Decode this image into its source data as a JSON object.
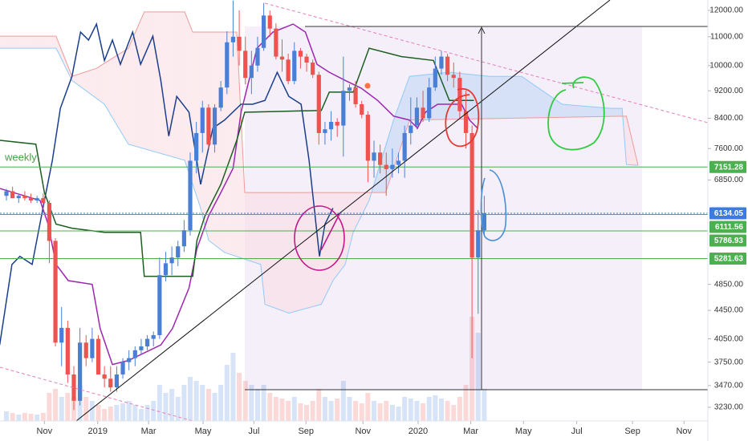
{
  "chart_data": {
    "type": "candlestick",
    "annotation": "weekly",
    "log_scale": true,
    "up_color": "#4a7fd6",
    "down_color": "#ef5350",
    "xlim": [
      -1.05,
      114.5
    ],
    "ylim": [
      3087,
      12421
    ],
    "xticks": [
      {
        "value": 6.2,
        "label": "Nov"
      },
      {
        "value": 14.9,
        "label": "2019"
      },
      {
        "value": 23.2,
        "label": "Mar"
      },
      {
        "value": 32.1,
        "label": "May"
      },
      {
        "value": 40.4,
        "label": "Jul"
      },
      {
        "value": 48.9,
        "label": "Sep"
      },
      {
        "value": 58.2,
        "label": "Nov"
      },
      {
        "value": 67.2,
        "label": "2020"
      },
      {
        "value": 75.8,
        "label": "Mar"
      },
      {
        "value": 84.4,
        "label": "May"
      },
      {
        "value": 93.1,
        "label": "Jul"
      },
      {
        "value": 102.2,
        "label": "Sep"
      },
      {
        "value": 110.6,
        "label": "Nov"
      }
    ],
    "yticks": [
      {
        "value": 12000,
        "label": "12000.00"
      },
      {
        "value": 11000,
        "label": "11000.00"
      },
      {
        "value": 10000,
        "label": "10000.00"
      },
      {
        "value": 9200,
        "label": "9200.00"
      },
      {
        "value": 8400,
        "label": "8400.00"
      },
      {
        "value": 7600,
        "label": "7600.00"
      },
      {
        "value": 6850,
        "label": "6850.00"
      },
      {
        "value": 4850,
        "label": "4850.00"
      },
      {
        "value": 4450,
        "label": "4450.00"
      },
      {
        "value": 4050,
        "label": "4050.00"
      },
      {
        "value": 3750,
        "label": "3750.00"
      },
      {
        "value": 3470,
        "label": "3470.00"
      },
      {
        "value": 3230,
        "label": "3230.00"
      }
    ],
    "open": [
      6500,
      6600,
      6450,
      6500,
      6450,
      6400,
      6450,
      6350,
      5600,
      4000,
      4200,
      3600,
      3300,
      4000,
      3800,
      4050,
      3600,
      3550,
      3450,
      3600,
      3750,
      3800,
      3900,
      3950,
      4050,
      4100,
      5000,
      5200,
      5300,
      5500,
      5800,
      7300,
      8000,
      8700,
      7700,
      8700,
      9300,
      10800,
      11000,
      10500,
      9600,
      10000,
      10600,
      11800,
      11300,
      10300,
      10200,
      9500,
      10500,
      10300,
      10100,
      9700,
      8000,
      8100,
      8300,
      8200,
      9200,
      9300,
      8800,
      8500,
      7300,
      7500,
      7200,
      7100,
      7200,
      7300,
      8000,
      8200,
      8700,
      8400,
      9300,
      9900,
      10300,
      9700,
      9600,
      8600,
      8000,
      5300,
      5800
    ],
    "high": [
      6650,
      6700,
      6550,
      6600,
      6550,
      6500,
      6550,
      6400,
      5650,
      4500,
      4300,
      3700,
      4200,
      4100,
      4200,
      4100,
      3700,
      3700,
      3700,
      3800,
      3900,
      3950,
      4050,
      4100,
      4150,
      5300,
      5400,
      5500,
      5600,
      6000,
      7500,
      8300,
      8900,
      8800,
      8800,
      9500,
      11200,
      12400,
      12000,
      11000,
      10500,
      11000,
      12300,
      12000,
      11500,
      10900,
      10400,
      10800,
      10600,
      10400,
      10200,
      9800,
      8300,
      8600,
      8400,
      10300,
      9400,
      9500,
      8900,
      8600,
      7800,
      7700,
      7500,
      7600,
      7500,
      8200,
      9000,
      9000,
      9200,
      9600,
      10300,
      10500,
      10400,
      10100,
      9800,
      9200,
      8200,
      6200,
      6500
    ],
    "low": [
      6400,
      6450,
      6350,
      6400,
      6350,
      6350,
      6300,
      5200,
      3950,
      3700,
      3500,
      3200,
      3250,
      3700,
      3750,
      3600,
      3450,
      3400,
      3400,
      3550,
      3650,
      3700,
      3850,
      3900,
      3950,
      4050,
      4900,
      5000,
      5150,
      5400,
      5700,
      7000,
      7500,
      7600,
      7500,
      8600,
      9100,
      10300,
      10000,
      9400,
      9100,
      9800,
      10500,
      11000,
      10200,
      9800,
      9400,
      9400,
      9900,
      9800,
      9600,
      7700,
      7700,
      7800,
      7900,
      7400,
      8900,
      8700,
      8400,
      6800,
      6900,
      7000,
      6500,
      6900,
      7000,
      6900,
      7700,
      8100,
      8300,
      8300,
      9200,
      9700,
      9500,
      9300,
      8400,
      7600,
      3800,
      4400,
      5700
    ],
    "close": [
      6600,
      6450,
      6500,
      6450,
      6400,
      6450,
      6350,
      5600,
      4000,
      4200,
      3600,
      3300,
      4000,
      3800,
      4050,
      3600,
      3550,
      3450,
      3600,
      3750,
      3800,
      3900,
      3950,
      4050,
      4100,
      5000,
      5200,
      5300,
      5500,
      5800,
      7300,
      8000,
      8700,
      7700,
      8700,
      9300,
      10800,
      11000,
      10500,
      9600,
      10000,
      10600,
      11800,
      11300,
      10300,
      10200,
      9500,
      10500,
      10300,
      10100,
      9700,
      8000,
      8100,
      8300,
      8200,
      9200,
      9300,
      8800,
      8500,
      7300,
      7500,
      7200,
      7100,
      7200,
      7300,
      8000,
      8200,
      8700,
      8400,
      9300,
      9900,
      10300,
      9700,
      9600,
      8600,
      8000,
      5300,
      5800,
      6134.05
    ],
    "volume": [
      12,
      10,
      8,
      10,
      9,
      8,
      10,
      35,
      40,
      30,
      35,
      30,
      45,
      30,
      25,
      20,
      15,
      18,
      20,
      22,
      25,
      20,
      15,
      20,
      25,
      45,
      35,
      40,
      30,
      45,
      55,
      50,
      45,
      40,
      35,
      45,
      70,
      85,
      60,
      50,
      45,
      40,
      45,
      35,
      30,
      28,
      25,
      30,
      22,
      20,
      25,
      40,
      30,
      25,
      28,
      50,
      30,
      25,
      22,
      35,
      25,
      22,
      25,
      20,
      18,
      30,
      28,
      25,
      22,
      30,
      32,
      28,
      25,
      20,
      30,
      45,
      130,
      110,
      40
    ],
    "lines": [
      {
        "color": "#1a3e8c",
        "x": [
          -1.1,
          0.9,
          2.2,
          4.2,
          6.2,
          7.5,
          8.8,
          10.7,
          12.1,
          13.4,
          14.7,
          16.0,
          17.3,
          18.6,
          20.6,
          21.9,
          23.9,
          25.2,
          26.5,
          27.8,
          29.8,
          31.7,
          33.7,
          35.6,
          38.3,
          40.2,
          42.2,
          44.2,
          46.1,
          48.1,
          49.4,
          51.1,
          52.0,
          53.3
        ],
        "values": [
          3970,
          5180,
          5320,
          5180,
          6400,
          7310,
          8680,
          9650,
          11170,
          10880,
          11470,
          10170,
          10880,
          10040,
          11170,
          10040,
          11020,
          9520,
          7920,
          9030,
          8570,
          6750,
          8130,
          8350,
          8800,
          8800,
          8910,
          9780,
          9030,
          8800,
          7310,
          5320,
          5920,
          6240
        ]
      },
      {
        "color": "#9c27b0",
        "x": [
          -1.1,
          5.5,
          6.8,
          8.1,
          10.1,
          14.0,
          15.3,
          17.3,
          19.9,
          25.2,
          27.1,
          29.8,
          31.1,
          33.0,
          35.0,
          37.0,
          38.3,
          40.9,
          43.5,
          46.8,
          48.8,
          50.7,
          52.7,
          55.3,
          57.9,
          60.6,
          63.2,
          65.8,
          67.1,
          68.4,
          70.4,
          72.3,
          74.3,
          75.6,
          76.9
        ],
        "values": [
          6660,
          6400,
          5920,
          5180,
          4910,
          4850,
          4190,
          3720,
          3770,
          3970,
          4190,
          4790,
          5460,
          6080,
          6570,
          7120,
          8570,
          10590,
          11170,
          11470,
          11170,
          10040,
          9780,
          9520,
          9280,
          8910,
          8460,
          8350,
          8130,
          8570,
          8800,
          8800,
          8800,
          8350,
          8130
        ]
      },
      {
        "color": "#1b5e20",
        "x": [
          -1.1,
          4.8,
          6.2,
          8.1,
          10.7,
          16.0,
          21.9,
          22.5,
          30.4,
          31.1,
          32.4,
          35.0,
          37.6,
          38.9,
          51.4,
          52.7,
          56.6,
          59.2,
          64.5,
          69.7,
          72.3,
          76.3
        ],
        "values": [
          7810,
          7710,
          6570,
          5920,
          5840,
          5760,
          5760,
          4980,
          4980,
          5610,
          6080,
          6750,
          7810,
          8570,
          8620,
          9160,
          9160,
          10590,
          10300,
          10170,
          8910,
          8910
        ]
      }
    ],
    "cloud": {
      "span_a": {
        "color": "#90caf9",
        "x": [
          -1.1,
          8.1,
          8.8,
          10.7,
          16.0,
          19.9,
          29.1,
          31.7,
          33.0,
          35.6,
          41.5,
          42.2,
          46.1,
          51.4,
          53.3,
          55.3,
          56.6,
          59.2,
          63.2,
          65.8,
          72.3,
          78.9,
          84.1,
          90.7,
          98.6,
          100.5,
          101.2,
          103.1
        ],
        "values": [
          10590,
          10590,
          10300,
          9520,
          8800,
          7710,
          7310,
          6240,
          5610,
          5390,
          5180,
          4540,
          4410,
          4540,
          4910,
          5180,
          5760,
          6400,
          8350,
          9650,
          9780,
          9650,
          9650,
          8800,
          8680,
          8680,
          7210,
          7190
        ]
      },
      "span_b": {
        "color": "#ef9a9a",
        "x": [
          -1.1,
          8.1,
          10.7,
          14.7,
          19.9,
          22.5,
          29.1,
          30.4,
          37.6,
          38.9,
          61.9,
          65.8,
          101.2,
          103.1
        ],
        "values": [
          11020,
          11020,
          9650,
          9910,
          10590,
          11940,
          11940,
          11170,
          11170,
          6570,
          6570,
          8350,
          8460,
          7190
        ]
      }
    },
    "levels": [
      {
        "value": 7151.28,
        "color": "#4caf50"
      },
      {
        "value": 6134.05,
        "color": "#3d7be0"
      },
      {
        "value": 6111.56,
        "color": "#4caf50"
      },
      {
        "value": 5786.93,
        "color": "#4caf50"
      },
      {
        "value": 5281.63,
        "color": "#4caf50"
      }
    ]
  }
}
